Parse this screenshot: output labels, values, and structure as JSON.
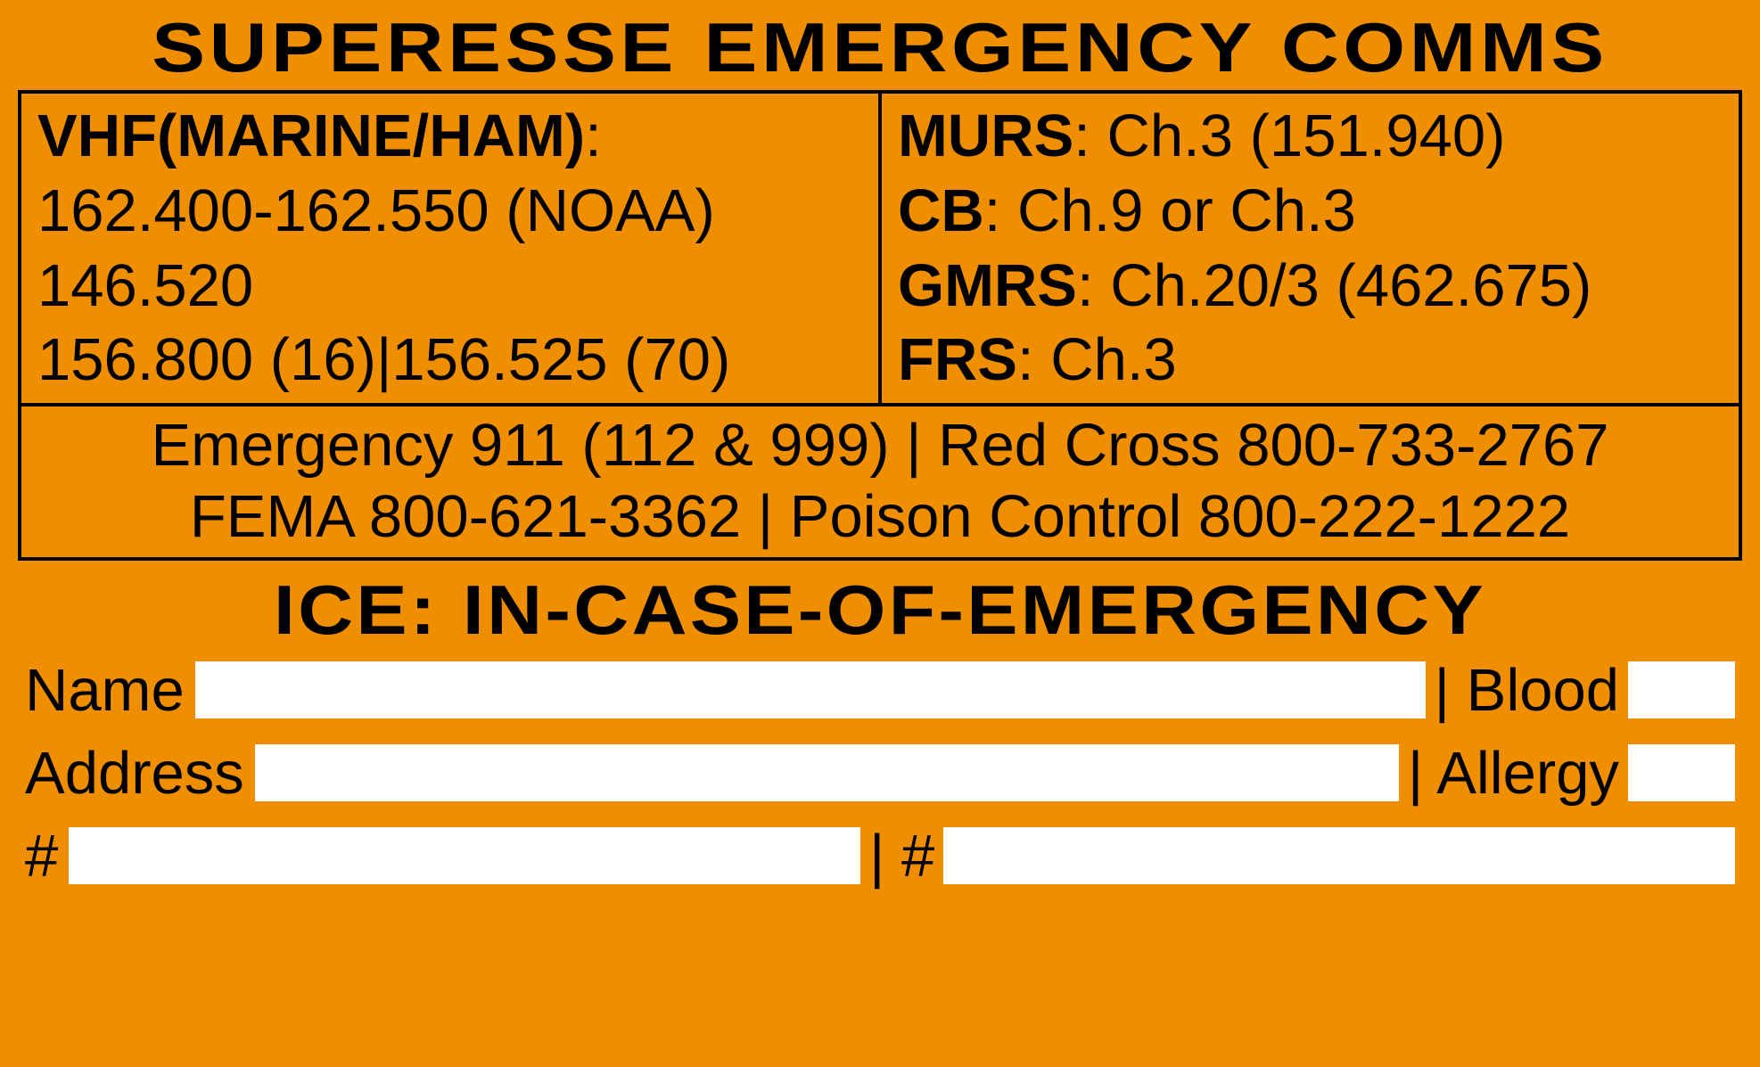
{
  "colors": {
    "background": "#ef8f00",
    "text": "#000000",
    "field_background": "#ffffff",
    "border": "#000000"
  },
  "typography": {
    "title_font": "Impact",
    "body_font": "Arial",
    "title_fontsize": 78,
    "body_fontsize": 67,
    "title_letter_spacing": 4
  },
  "header": {
    "title": "SUPERESSE EMERGENCY COMMS"
  },
  "comms": {
    "left": {
      "vhf_label": "VHF(MARINE/HAM)",
      "vhf_line1": "162.400-162.550  (NOAA)",
      "vhf_line2": "146.520",
      "vhf_line3": "156.800 (16)|156.525 (70)"
    },
    "right": {
      "murs_label": "MURS",
      "murs_value": ": Ch.3 (151.940)",
      "cb_label": "CB",
      "cb_value": ": Ch.9 or Ch.3",
      "gmrs_label": "GMRS",
      "gmrs_value": ": Ch.20/3 (462.675)",
      "frs_label": "FRS",
      "frs_value": ": Ch.3"
    },
    "phones": {
      "line1": "Emergency 911 (112 & 999) | Red Cross 800-733-2767",
      "line2": "FEMA 800-621-3362 | Poison Control 800-222-1222"
    }
  },
  "ice": {
    "title": "ICE: IN-CASE-OF-EMERGENCY",
    "labels": {
      "name": "Name",
      "blood": "| Blood",
      "address": "Address",
      "allergy": "| Allergy",
      "num1": "#",
      "num2": "| #"
    }
  }
}
